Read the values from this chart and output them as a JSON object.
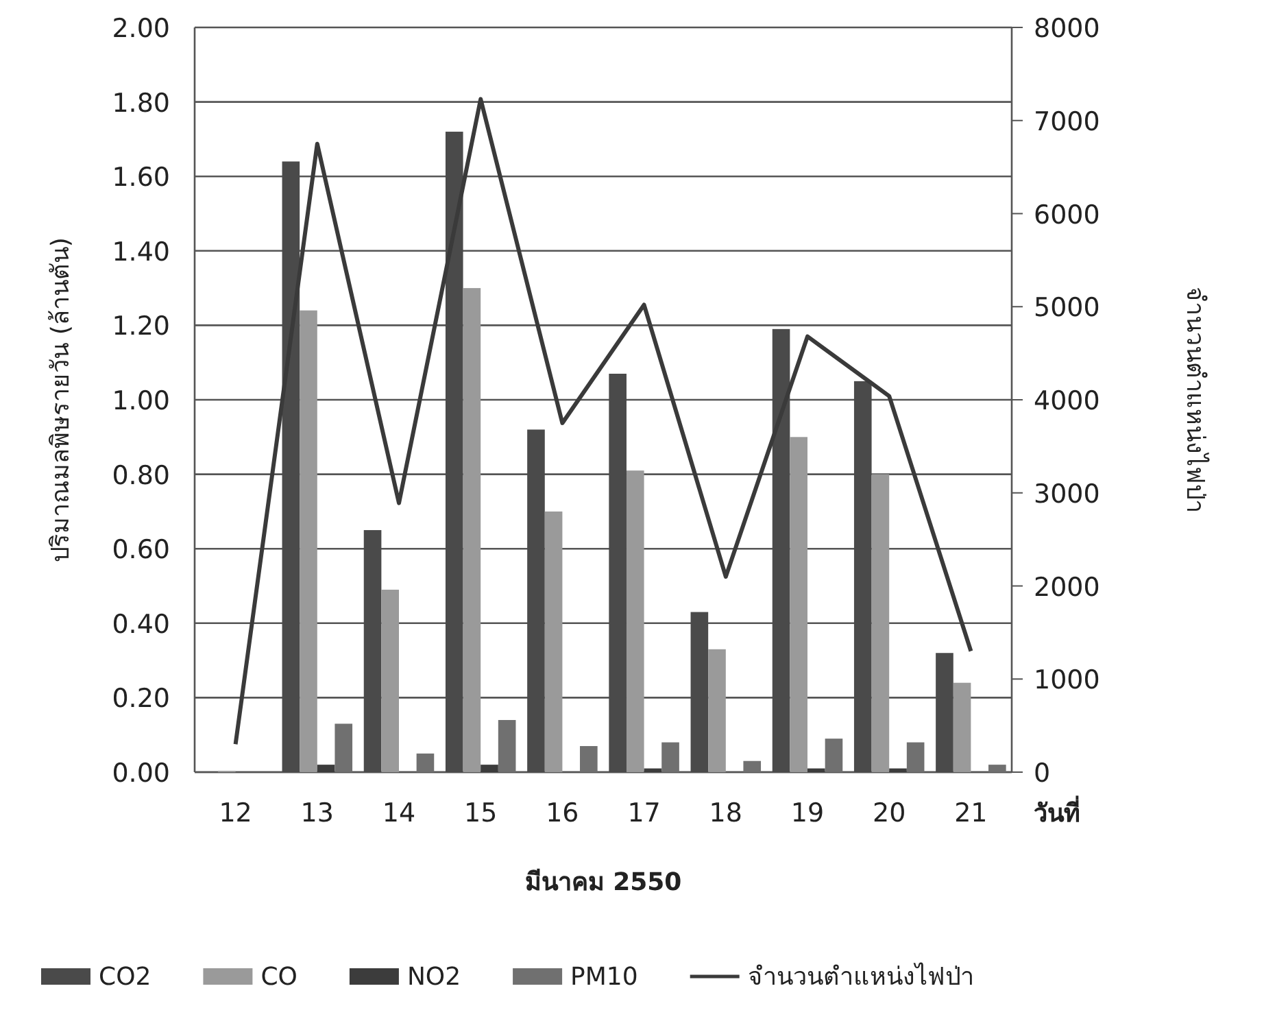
{
  "chart_data": {
    "type": "bar",
    "categories": [
      "12",
      "13",
      "14",
      "15",
      "16",
      "17",
      "18",
      "19",
      "20",
      "21"
    ],
    "series": [
      {
        "name": "CO2",
        "color": "#4a4a4a",
        "values": [
          null,
          1.64,
          0.65,
          1.72,
          0.92,
          1.07,
          0.43,
          1.19,
          1.05,
          0.32
        ]
      },
      {
        "name": "CO",
        "color": "#9a9a9a",
        "values": [
          0.003,
          1.24,
          0.49,
          1.3,
          0.7,
          0.81,
          0.33,
          0.9,
          0.8,
          0.24
        ]
      },
      {
        "name": "NO2",
        "color": "#3c3c3c",
        "values": [
          0,
          0.02,
          null,
          0.02,
          null,
          0.01,
          null,
          0.01,
          0.01,
          null
        ]
      },
      {
        "name": "PM10",
        "color": "#707070",
        "values": [
          0,
          0.13,
          0.05,
          0.14,
          0.07,
          0.08,
          0.03,
          0.09,
          0.08,
          0.02
        ]
      },
      {
        "name": "จำนวนตำแหน่งไฟป่า",
        "type": "line",
        "axis": "y2",
        "color": "#3a3a3a",
        "values": [
          300,
          6750,
          2890,
          7230,
          3750,
          5020,
          2100,
          4680,
          4040,
          1300
        ]
      }
    ],
    "ylim": [
      0,
      2
    ],
    "yticks": [
      {
        "value": 0,
        "label": "0.00"
      },
      {
        "value": 0.2,
        "label": "0.20"
      },
      {
        "value": 0.4,
        "label": "0.40"
      },
      {
        "value": 0.6,
        "label": "0.60"
      },
      {
        "value": 0.8,
        "label": "0.80"
      },
      {
        "value": 1,
        "label": "1.00"
      },
      {
        "value": 1.2,
        "label": "1.20"
      },
      {
        "value": 1.4,
        "label": "1.40"
      },
      {
        "value": 1.6,
        "label": "1.60"
      },
      {
        "value": 1.8,
        "label": "1.80"
      },
      {
        "value": 2,
        "label": "2.00"
      }
    ],
    "y2lim": [
      0,
      8000
    ],
    "y2ticks": [
      0,
      1000,
      2000,
      3000,
      4000,
      5000,
      6000,
      7000,
      8000
    ],
    "ylabel": "ปริมาณมลพิษรายวัน (ล้านตัน)",
    "y2label": "จำนวนตำแหน่งไฟป่า",
    "xlabel": "มีนาคม 2550",
    "annotations": [
      "วันที่"
    ],
    "grid": "y",
    "legend": "bottom"
  }
}
